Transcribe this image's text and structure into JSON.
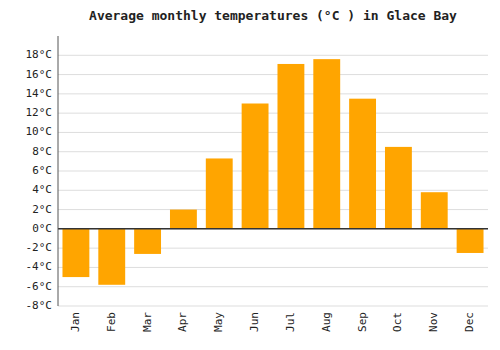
{
  "chart_data": {
    "type": "bar",
    "title": "Average monthly temperatures (°C ) in Glace Bay",
    "categories": [
      "Jan",
      "Feb",
      "Mar",
      "Apr",
      "May",
      "Jun",
      "Jul",
      "Aug",
      "Sep",
      "Oct",
      "Nov",
      "Dec"
    ],
    "values": [
      -5.0,
      -5.8,
      -2.6,
      2.0,
      7.3,
      13.0,
      17.1,
      17.6,
      13.5,
      8.5,
      3.8,
      -2.5
    ],
    "color": "#FFA500",
    "ylim": [
      -8,
      20
    ],
    "yticks": [
      {
        "value": -8,
        "label": "-8°C"
      },
      {
        "value": -6,
        "label": "-6°C"
      },
      {
        "value": -4,
        "label": "-4°C"
      },
      {
        "value": -2,
        "label": "-2°C"
      },
      {
        "value": 0,
        "label": "0°C"
      },
      {
        "value": 2,
        "label": "2°C"
      },
      {
        "value": 4,
        "label": "4°C"
      },
      {
        "value": 6,
        "label": "6°C"
      },
      {
        "value": 8,
        "label": "8°C"
      },
      {
        "value": 10,
        "label": "10°C"
      },
      {
        "value": 12,
        "label": "12°C"
      },
      {
        "value": 14,
        "label": "14°C"
      },
      {
        "value": 16,
        "label": "16°C"
      },
      {
        "value": 18,
        "label": "18°C"
      }
    ],
    "grid": true
  }
}
